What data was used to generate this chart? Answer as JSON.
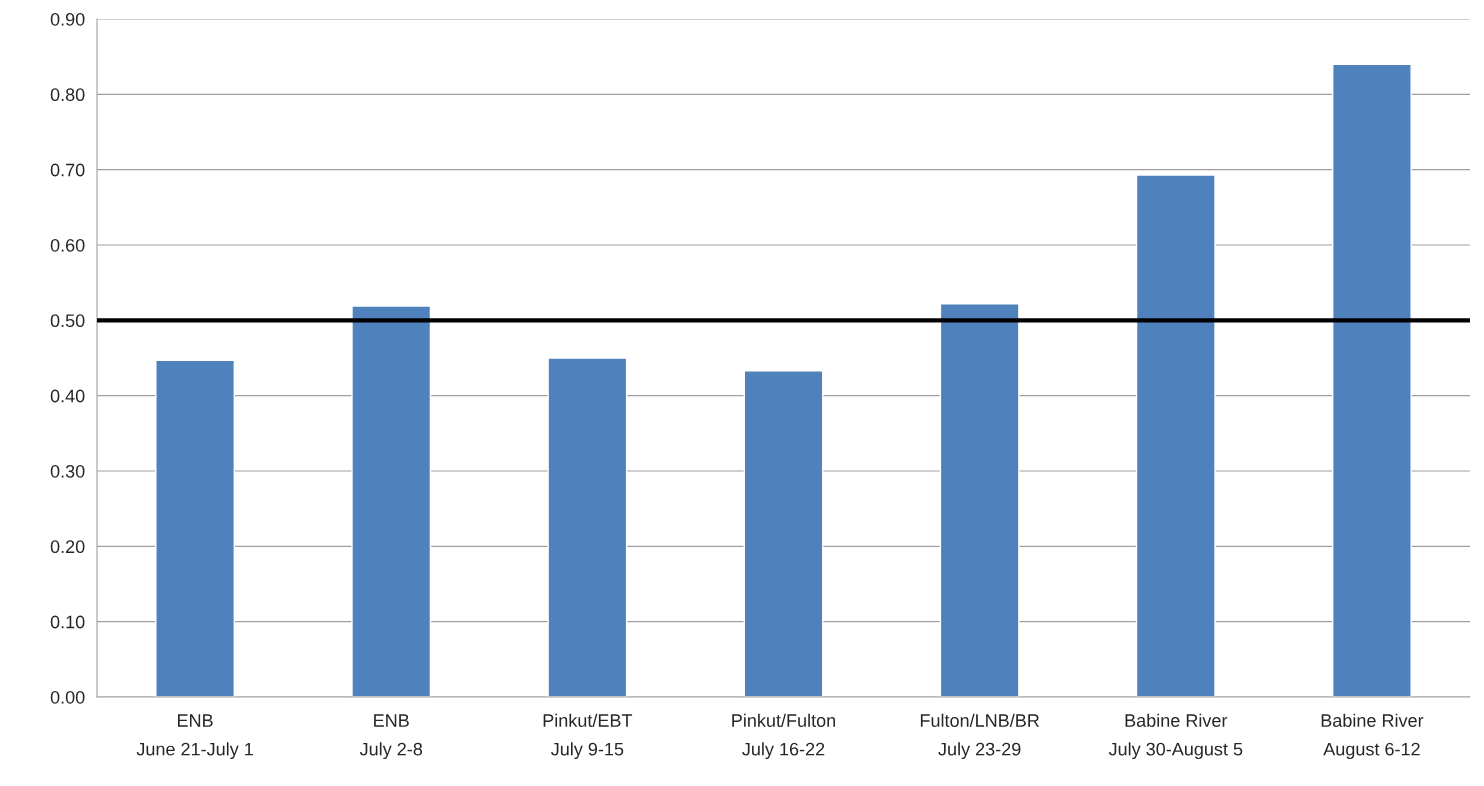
{
  "chart_data": {
    "type": "bar",
    "categories": [
      "ENB\nJune 21-July 1",
      "ENB\nJuly 2-8",
      "Pinkut/EBT\nJuly 9-15",
      "Pinkut/Fulton\nJuly 16-22",
      "Fulton/LNB/BR\nJuly 23-29",
      "Babine River\nJuly 30-August 5",
      "Babine River\nAugust 6-12"
    ],
    "values": [
      0.447,
      0.519,
      0.45,
      0.433,
      0.522,
      0.693,
      0.84
    ],
    "color": "#4f81bd",
    "ylim": [
      0,
      0.9
    ],
    "yticks": [
      {
        "value": 0,
        "label": "0.00"
      },
      {
        "value": 0.1,
        "label": "0.10"
      },
      {
        "value": 0.2,
        "label": "0.20"
      },
      {
        "value": 0.3,
        "label": "0.30"
      },
      {
        "value": 0.4,
        "label": "0.40"
      },
      {
        "value": 0.5,
        "label": "0.50"
      },
      {
        "value": 0.6,
        "label": "0.60"
      },
      {
        "value": 0.7,
        "label": "0.70"
      },
      {
        "value": 0.8,
        "label": "0.80"
      },
      {
        "value": 0.9,
        "label": "0.90"
      }
    ],
    "ref_lines": [
      {
        "axis": "y",
        "value": 0.5,
        "color": "#000000"
      }
    ],
    "grid": "y"
  }
}
